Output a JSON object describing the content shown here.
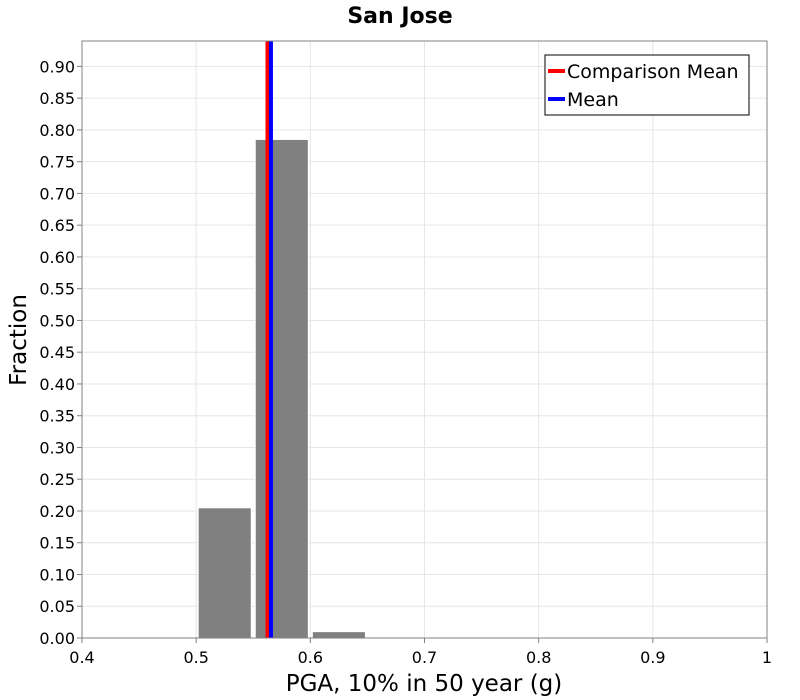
{
  "chart_data": {
    "type": "bar",
    "title": "San Jose",
    "xlabel": "PGA, 10% in 50 year (g)",
    "ylabel": "Fraction",
    "xlim": [
      0.4,
      1.0
    ],
    "ylim": [
      0.0,
      0.94
    ],
    "x_ticks": [
      "0.4",
      "0.5",
      "0.6",
      "0.7",
      "0.8",
      "0.9",
      "1"
    ],
    "y_ticks": [
      "0.00",
      "0.05",
      "0.10",
      "0.15",
      "0.20",
      "0.25",
      "0.30",
      "0.35",
      "0.40",
      "0.45",
      "0.50",
      "0.55",
      "0.60",
      "0.65",
      "0.70",
      "0.75",
      "0.80",
      "0.85",
      "0.90"
    ],
    "bin_width": 0.05,
    "bars": [
      {
        "bin_start": 0.5,
        "bin_end": 0.55,
        "value": 0.205
      },
      {
        "bin_start": 0.55,
        "bin_end": 0.6,
        "value": 0.785
      },
      {
        "bin_start": 0.6,
        "bin_end": 0.65,
        "value": 0.01
      }
    ],
    "vlines": [
      {
        "name": "Comparison Mean",
        "x": 0.5625,
        "color": "#ff0000"
      },
      {
        "name": "Mean",
        "x": 0.5655,
        "color": "#0000ff"
      }
    ],
    "legend": {
      "position": "top-right",
      "entries": [
        {
          "label": "Comparison Mean",
          "color": "#ff0000"
        },
        {
          "label": "Mean",
          "color": "#0000ff"
        }
      ]
    },
    "bar_color": "#808080",
    "grid": true
  }
}
